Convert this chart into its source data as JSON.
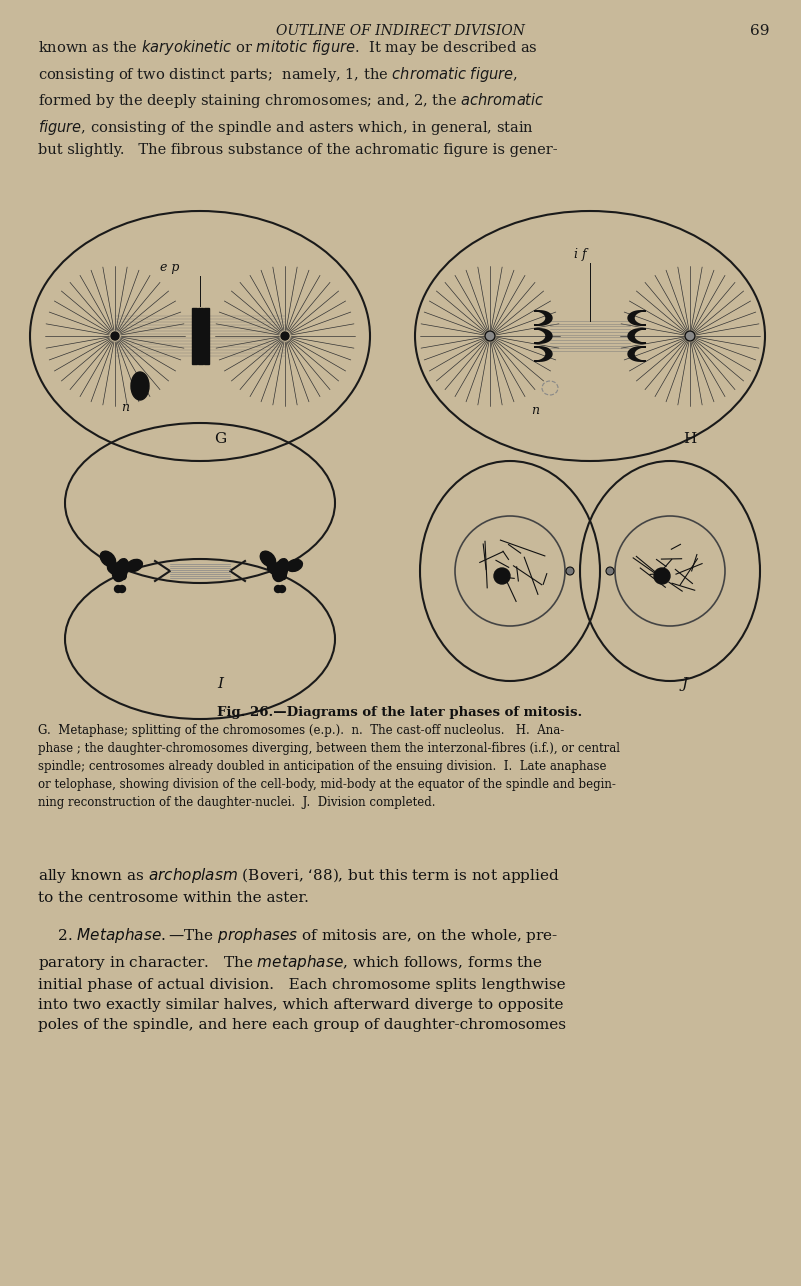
{
  "bg_color": "#c8b99a",
  "page_bg": "#c8b99a",
  "text_color": "#1a1a1a",
  "header_text": "OUTLINE OF INDIRECT DIVISION",
  "page_number": "69",
  "para1": "known as the karyokinetic or mitotic figure.  It may be described as\nconsisting of two distinct parts;  namely, 1, the chromatic figure,\nformed by the deeply staining chromosomes; and, 2, the achromatic\nfigure, consisting of the spindle and asters which, in general, stain\nbut slightly.   The fibrous substance of the achromatic figure is gener-",
  "fig_caption": "Fig. 26.—Diagrams of the later phases of mitosis.",
  "fig_desc": "G.  Metaphase; splitting of the chromosomes (e.p.).  n.  The cast-off nucleolus.   H.  Ana-\nphase ; the daughter-chromosomes diverging, between them the interzonal-fibres (i.f.), or central\nspindle; centrosomes already doubled in anticipation of the ensuing division.  I.  Late anaphase\nor telophase, showing division of the cell-body, mid-body at the equator of the spindle and begin-\nning reconstruction of the daughter-nuclei.  J.  Division completed.",
  "para2": "ally known as archoplasm (Boveri, ‘88), but this term is not applied\nto the centrosome within the aster.",
  "para3": "2. Metaphase.—The prophases of mitosis are, on the whole, pre-\nparatory in character.  The metaphase, which follows, forms the\ninitial phase of actual division.  Each chromosome splits lengthwise\ninto two exactly similar halves, which afterward diverge to opposite\npoles of the spindle, and here each group of daughter-chromosomes"
}
